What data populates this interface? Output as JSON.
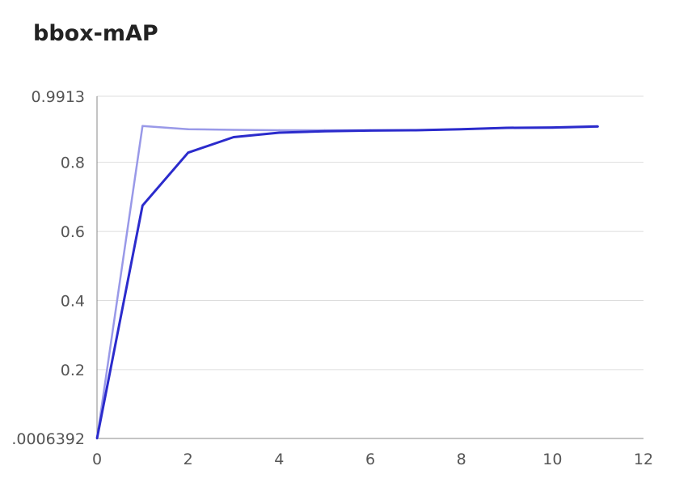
{
  "chart_data": {
    "type": "line",
    "title": "bbox-mAP",
    "xlabel": "",
    "ylabel": "",
    "xlim": [
      0,
      12
    ],
    "ylim": [
      0.0006392,
      0.9913
    ],
    "xticks": [
      "0",
      "2",
      "4",
      "6",
      "8",
      "10",
      "12"
    ],
    "xtick_values": [
      0,
      2,
      4,
      6,
      8,
      10,
      12
    ],
    "yticks": [
      ".0006392",
      "0.2",
      "0.4",
      "0.6",
      "0.8",
      "0.9913"
    ],
    "ytick_values": [
      0.0006392,
      0.2,
      0.4,
      0.6,
      0.8,
      0.9913
    ],
    "grid": true,
    "legend": "none",
    "series": [
      {
        "color": "#9999e8",
        "x": [
          0,
          1,
          2,
          3,
          4,
          5,
          6,
          7,
          8,
          9,
          10,
          11
        ],
        "values": [
          0.0006392,
          0.905,
          0.896,
          0.894,
          0.893,
          0.893,
          0.893,
          0.893,
          0.896,
          0.9,
          0.9,
          0.903
        ]
      },
      {
        "color": "#2b2bcc",
        "x": [
          0,
          1,
          2,
          3,
          4,
          5,
          6,
          7,
          8,
          9,
          10,
          11
        ],
        "values": [
          0.0006392,
          0.675,
          0.828,
          0.873,
          0.886,
          0.89,
          0.892,
          0.893,
          0.896,
          0.9,
          0.901,
          0.904
        ]
      }
    ]
  }
}
